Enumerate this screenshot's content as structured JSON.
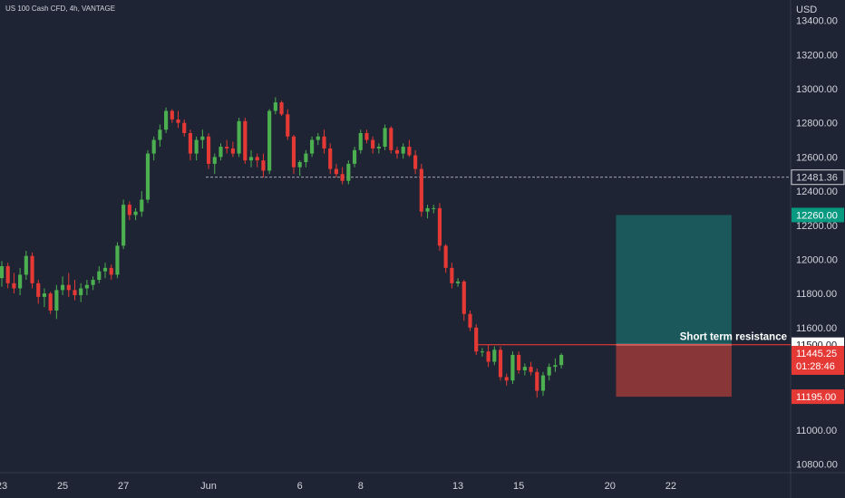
{
  "header": {
    "symbol_title": "US 100 Cash CFD, 4h, VANTAGE",
    "currency": "USD"
  },
  "colors": {
    "background": "#1e2433",
    "up": "#4caf50",
    "down": "#e53935",
    "target_zone": "#1b5c5e",
    "stop_zone": "#8e3838",
    "resistance": "#e53935",
    "axis_text": "#d1d4dc"
  },
  "chart_data": {
    "type": "candlestick",
    "ylim": [
      10750,
      13520
    ],
    "y_ticks": [
      10800,
      11000,
      11200,
      11400,
      11600,
      11800,
      12000,
      12200,
      12400,
      12600,
      12800,
      13000,
      13200,
      13400
    ],
    "y_tick_labels": [
      "10800.00",
      "11000.00",
      "11200.00",
      "11400.00",
      "11600.00",
      "11800.00",
      "12000.00",
      "12200.00",
      "12400.00",
      "12600.00",
      "12800.00",
      "13000.00",
      "13200.00",
      "13400.00"
    ],
    "x_tick_labels": [
      "23",
      "25",
      "27",
      "Jun",
      "6",
      "8",
      "13",
      "15",
      "20",
      "22"
    ],
    "x_tick_bar_index": [
      0,
      10,
      20,
      34,
      49,
      59,
      75,
      85,
      100,
      110
    ],
    "bar_count_visible": 130,
    "candles": [
      [
        11890,
        11990,
        11840,
        11960
      ],
      [
        11960,
        11980,
        11830,
        11860
      ],
      [
        11860,
        11920,
        11800,
        11830
      ],
      [
        11830,
        11950,
        11790,
        11910
      ],
      [
        11910,
        12050,
        11880,
        12020
      ],
      [
        12020,
        12040,
        11830,
        11860
      ],
      [
        11860,
        11880,
        11740,
        11780
      ],
      [
        11780,
        11830,
        11720,
        11800
      ],
      [
        11800,
        11810,
        11680,
        11700
      ],
      [
        11700,
        11850,
        11650,
        11820
      ],
      [
        11820,
        11900,
        11790,
        11850
      ],
      [
        11850,
        11920,
        11780,
        11820
      ],
      [
        11820,
        11880,
        11760,
        11790
      ],
      [
        11790,
        11860,
        11750,
        11830
      ],
      [
        11830,
        11880,
        11790,
        11850
      ],
      [
        11850,
        11900,
        11820,
        11880
      ],
      [
        11880,
        11960,
        11860,
        11930
      ],
      [
        11930,
        11980,
        11890,
        11950
      ],
      [
        11950,
        11970,
        11880,
        11910
      ],
      [
        11910,
        12100,
        11890,
        12080
      ],
      [
        12080,
        12350,
        12060,
        12320
      ],
      [
        12320,
        12340,
        12230,
        12260
      ],
      [
        12260,
        12300,
        12230,
        12280
      ],
      [
        12280,
        12400,
        12250,
        12350
      ],
      [
        12350,
        12640,
        12330,
        12620
      ],
      [
        12620,
        12720,
        12580,
        12700
      ],
      [
        12700,
        12790,
        12660,
        12760
      ],
      [
        12760,
        12890,
        12740,
        12870
      ],
      [
        12870,
        12880,
        12800,
        12820
      ],
      [
        12820,
        12870,
        12770,
        12800
      ],
      [
        12800,
        12820,
        12720,
        12740
      ],
      [
        12740,
        12760,
        12580,
        12620
      ],
      [
        12620,
        12720,
        12580,
        12700
      ],
      [
        12700,
        12760,
        12650,
        12720
      ],
      [
        12720,
        12740,
        12530,
        12560
      ],
      [
        12560,
        12620,
        12500,
        12600
      ],
      [
        12600,
        12680,
        12580,
        12660
      ],
      [
        12660,
        12700,
        12620,
        12650
      ],
      [
        12650,
        12690,
        12600,
        12620
      ],
      [
        12620,
        12830,
        12600,
        12810
      ],
      [
        12810,
        12830,
        12560,
        12580
      ],
      [
        12580,
        12640,
        12540,
        12600
      ],
      [
        12600,
        12620,
        12540,
        12580
      ],
      [
        12580,
        12620,
        12480,
        12520
      ],
      [
        12520,
        12880,
        12500,
        12870
      ],
      [
        12870,
        12950,
        12850,
        12920
      ],
      [
        12920,
        12930,
        12840,
        12850
      ],
      [
        12850,
        12880,
        12700,
        12720
      ],
      [
        12720,
        12730,
        12500,
        12540
      ],
      [
        12540,
        12580,
        12490,
        12570
      ],
      [
        12570,
        12640,
        12540,
        12620
      ],
      [
        12620,
        12720,
        12600,
        12700
      ],
      [
        12700,
        12740,
        12670,
        12720
      ],
      [
        12720,
        12760,
        12620,
        12650
      ],
      [
        12650,
        12680,
        12500,
        12530
      ],
      [
        12530,
        12560,
        12480,
        12500
      ],
      [
        12500,
        12540,
        12440,
        12460
      ],
      [
        12460,
        12580,
        12440,
        12560
      ],
      [
        12560,
        12660,
        12540,
        12640
      ],
      [
        12640,
        12760,
        12620,
        12740
      ],
      [
        12740,
        12760,
        12680,
        12700
      ],
      [
        12700,
        12720,
        12620,
        12650
      ],
      [
        12650,
        12680,
        12620,
        12660
      ],
      [
        12660,
        12790,
        12640,
        12770
      ],
      [
        12770,
        12780,
        12620,
        12640
      ],
      [
        12640,
        12660,
        12590,
        12620
      ],
      [
        12620,
        12680,
        12590,
        12660
      ],
      [
        12660,
        12700,
        12600,
        12610
      ],
      [
        12610,
        12640,
        12500,
        12530
      ],
      [
        12530,
        12560,
        12250,
        12280
      ],
      [
        12280,
        12320,
        12240,
        12300
      ],
      [
        12300,
        12320,
        12270,
        12300
      ],
      [
        12300,
        12330,
        12050,
        12080
      ],
      [
        12080,
        12090,
        11920,
        11950
      ],
      [
        11950,
        11980,
        11830,
        11860
      ],
      [
        11860,
        11890,
        11840,
        11870
      ],
      [
        11870,
        11880,
        11640,
        11680
      ],
      [
        11680,
        11700,
        11580,
        11600
      ],
      [
        11600,
        11620,
        11440,
        11460
      ],
      [
        11460,
        11480,
        11430,
        11460
      ],
      [
        11460,
        11500,
        11370,
        11400
      ],
      [
        11400,
        11490,
        11380,
        11470
      ],
      [
        11470,
        11490,
        11290,
        11310
      ],
      [
        11310,
        11330,
        11260,
        11290
      ],
      [
        11290,
        11460,
        11270,
        11440
      ],
      [
        11440,
        11460,
        11330,
        11350
      ],
      [
        11350,
        11390,
        11320,
        11370
      ],
      [
        11370,
        11400,
        11320,
        11340
      ],
      [
        11340,
        11360,
        11190,
        11230
      ],
      [
        11230,
        11340,
        11200,
        11320
      ],
      [
        11320,
        11390,
        11290,
        11370
      ],
      [
        11370,
        11420,
        11340,
        11380
      ],
      [
        11380,
        11450,
        11360,
        11440
      ]
    ],
    "right_price_levels": [
      "12481.36",
      "12260.00",
      "11500.00",
      "11445.25",
      "01:28:46",
      "11195.00"
    ],
    "level_values": {
      "dashed_support": 12481.36,
      "target": 12260,
      "entry_resistance": 11500,
      "last_price": 11445.25,
      "stop": 11195
    },
    "annotation_text": "Short term resistance"
  }
}
